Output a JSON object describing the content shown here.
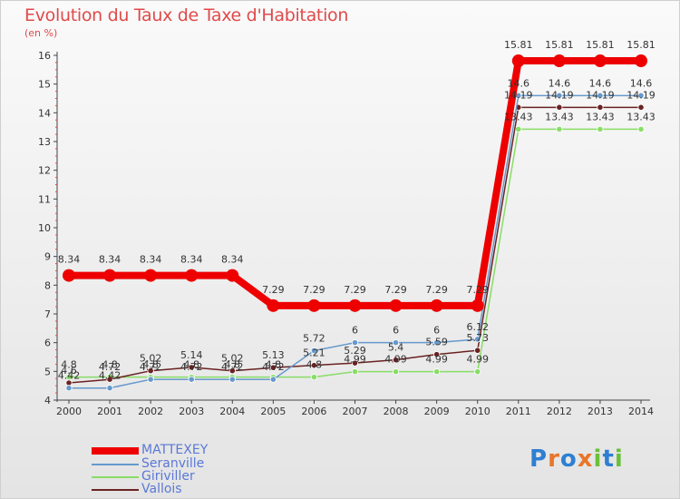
{
  "chart_data": {
    "type": "line",
    "title": "Evolution du Taux de Taxe d'Habitation",
    "subtitle": "(en %)",
    "x": [
      2000,
      2001,
      2002,
      2003,
      2004,
      2005,
      2006,
      2007,
      2008,
      2009,
      2010,
      2011,
      2012,
      2013,
      2014
    ],
    "xlabels": [
      "2000",
      "2001",
      "2002",
      "2003",
      "2004",
      "2005",
      "2006",
      "2007",
      "2008",
      "2009",
      "2010",
      "2011",
      "2012",
      "2013",
      "2014"
    ],
    "ylim": [
      4,
      16
    ],
    "yticks": [
      4,
      5,
      6,
      7,
      8,
      9,
      10,
      11,
      12,
      13,
      14,
      15,
      16
    ],
    "grid": false,
    "legend_position": "bottom-left",
    "series": [
      {
        "name": "MATTEXEY",
        "color": "#ee0000",
        "values": [
          8.34,
          8.34,
          8.34,
          8.34,
          8.34,
          7.29,
          7.29,
          7.29,
          7.29,
          7.29,
          7.29,
          15.81,
          15.81,
          15.81,
          15.81
        ],
        "labels": [
          "8.34",
          "8.34",
          "8.34",
          "8.34",
          "8.34",
          "7.29",
          "7.29",
          "7.29",
          "7.29",
          "7.29",
          "7.29",
          "15.81",
          "15.81",
          "15.81",
          "15.81"
        ]
      },
      {
        "name": "Seranville",
        "color": "#6699cc",
        "values": [
          4.42,
          4.42,
          4.72,
          4.72,
          4.72,
          4.72,
          5.72,
          6,
          6,
          6,
          6.12,
          14.6,
          14.6,
          14.6,
          14.6
        ],
        "labels": [
          "4.42",
          "4.42",
          "4.72",
          "4.72",
          "4.72",
          "4.72",
          "5.72",
          "6",
          "6",
          "6",
          "6.12",
          "14.6",
          "14.6",
          "14.6",
          "14.6"
        ]
      },
      {
        "name": "Giriviller",
        "color": "#88dd66",
        "values": [
          4.8,
          4.8,
          4.8,
          4.8,
          4.8,
          4.8,
          4.8,
          4.99,
          4.99,
          4.99,
          4.99,
          13.43,
          13.43,
          13.43,
          13.43
        ],
        "labels": [
          "4.8",
          "4.8",
          "4.8",
          "4.8",
          "4.8",
          "4.8",
          "4.8",
          "4.99",
          "4.99",
          "4.99",
          "4.99",
          "13.43",
          "13.43",
          "13.43",
          "13.43"
        ]
      },
      {
        "name": "Vallois",
        "color": "#6a2222",
        "values": [
          4.6,
          4.72,
          5.02,
          5.14,
          5.02,
          5.13,
          5.21,
          5.29,
          5.4,
          5.59,
          5.73,
          14.19,
          14.19,
          14.19,
          14.19
        ],
        "labels": [
          "4.6",
          "4.72",
          "5.02",
          "5.14",
          "5.02",
          "5.13",
          "5.21",
          "5.29",
          "5.4",
          "5.59",
          "5.73",
          "14.19",
          "14.19",
          "14.19",
          "14.19"
        ]
      }
    ]
  },
  "legend": {
    "items": [
      {
        "label": "MATTEXEY",
        "color": "#ee0000"
      },
      {
        "label": "Seranville",
        "color": "#6699cc"
      },
      {
        "label": "Giriviller",
        "color": "#88dd66"
      },
      {
        "label": "Vallois",
        "color": "#6a2222"
      }
    ]
  },
  "logo": {
    "letters": [
      "P",
      "r",
      "o",
      "x",
      "i",
      "t",
      "i"
    ],
    "colors": [
      "#2f7fd1",
      "#e8762a",
      "#2f7fd1",
      "#e8762a",
      "#6bbf3a",
      "#2f7fd1",
      "#6bbf3a"
    ]
  }
}
